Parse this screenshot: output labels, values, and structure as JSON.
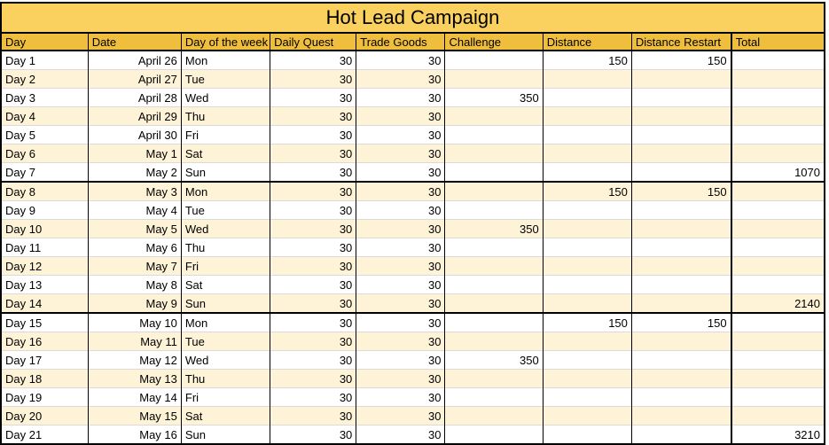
{
  "title": "Hot Lead Campaign",
  "columns": [
    {
      "key": "day",
      "label": "Day",
      "align": "left"
    },
    {
      "key": "date",
      "label": "Date",
      "align": "right"
    },
    {
      "key": "dow",
      "label": "Day of the week",
      "align": "left"
    },
    {
      "key": "daily_quest",
      "label": "Daily Quest",
      "align": "right"
    },
    {
      "key": "trade_goods",
      "label": "Trade Goods",
      "align": "right"
    },
    {
      "key": "challenge",
      "label": "Challenge",
      "align": "right"
    },
    {
      "key": "distance",
      "label": "Distance",
      "align": "right"
    },
    {
      "key": "distance_restart",
      "label": "Distance Restart",
      "align": "right"
    },
    {
      "key": "total",
      "label": "Total",
      "align": "right"
    }
  ],
  "rows": [
    {
      "day": "Day 1",
      "date": "April 26",
      "dow": "Mon",
      "daily_quest": 30,
      "trade_goods": 30,
      "challenge": "",
      "distance": 150,
      "distance_restart": 150,
      "total": ""
    },
    {
      "day": "Day 2",
      "date": "April 27",
      "dow": "Tue",
      "daily_quest": 30,
      "trade_goods": 30,
      "challenge": "",
      "distance": "",
      "distance_restart": "",
      "total": ""
    },
    {
      "day": "Day 3",
      "date": "April 28",
      "dow": "Wed",
      "daily_quest": 30,
      "trade_goods": 30,
      "challenge": 350,
      "distance": "",
      "distance_restart": "",
      "total": ""
    },
    {
      "day": "Day 4",
      "date": "April 29",
      "dow": "Thu",
      "daily_quest": 30,
      "trade_goods": 30,
      "challenge": "",
      "distance": "",
      "distance_restart": "",
      "total": ""
    },
    {
      "day": "Day 5",
      "date": "April 30",
      "dow": "Fri",
      "daily_quest": 30,
      "trade_goods": 30,
      "challenge": "",
      "distance": "",
      "distance_restart": "",
      "total": ""
    },
    {
      "day": "Day 6",
      "date": "May 1",
      "dow": "Sat",
      "daily_quest": 30,
      "trade_goods": 30,
      "challenge": "",
      "distance": "",
      "distance_restart": "",
      "total": ""
    },
    {
      "day": "Day 7",
      "date": "May 2",
      "dow": "Sun",
      "daily_quest": 30,
      "trade_goods": 30,
      "challenge": "",
      "distance": "",
      "distance_restart": "",
      "total": 1070
    },
    {
      "day": "Day 8",
      "date": "May 3",
      "dow": "Mon",
      "daily_quest": 30,
      "trade_goods": 30,
      "challenge": "",
      "distance": 150,
      "distance_restart": 150,
      "total": ""
    },
    {
      "day": "Day 9",
      "date": "May 4",
      "dow": "Tue",
      "daily_quest": 30,
      "trade_goods": 30,
      "challenge": "",
      "distance": "",
      "distance_restart": "",
      "total": ""
    },
    {
      "day": "Day 10",
      "date": "May 5",
      "dow": "Wed",
      "daily_quest": 30,
      "trade_goods": 30,
      "challenge": 350,
      "distance": "",
      "distance_restart": "",
      "total": ""
    },
    {
      "day": "Day 11",
      "date": "May 6",
      "dow": "Thu",
      "daily_quest": 30,
      "trade_goods": 30,
      "challenge": "",
      "distance": "",
      "distance_restart": "",
      "total": ""
    },
    {
      "day": "Day 12",
      "date": "May 7",
      "dow": "Fri",
      "daily_quest": 30,
      "trade_goods": 30,
      "challenge": "",
      "distance": "",
      "distance_restart": "",
      "total": ""
    },
    {
      "day": "Day 13",
      "date": "May 8",
      "dow": "Sat",
      "daily_quest": 30,
      "trade_goods": 30,
      "challenge": "",
      "distance": "",
      "distance_restart": "",
      "total": ""
    },
    {
      "day": "Day 14",
      "date": "May 9",
      "dow": "Sun",
      "daily_quest": 30,
      "trade_goods": 30,
      "challenge": "",
      "distance": "",
      "distance_restart": "",
      "total": 2140
    },
    {
      "day": "Day 15",
      "date": "May 10",
      "dow": "Mon",
      "daily_quest": 30,
      "trade_goods": 30,
      "challenge": "",
      "distance": 150,
      "distance_restart": 150,
      "total": ""
    },
    {
      "day": "Day 16",
      "date": "May 11",
      "dow": "Tue",
      "daily_quest": 30,
      "trade_goods": 30,
      "challenge": "",
      "distance": "",
      "distance_restart": "",
      "total": ""
    },
    {
      "day": "Day 17",
      "date": "May 12",
      "dow": "Wed",
      "daily_quest": 30,
      "trade_goods": 30,
      "challenge": 350,
      "distance": "",
      "distance_restart": "",
      "total": ""
    },
    {
      "day": "Day 18",
      "date": "May 13",
      "dow": "Thu",
      "daily_quest": 30,
      "trade_goods": 30,
      "challenge": "",
      "distance": "",
      "distance_restart": "",
      "total": ""
    },
    {
      "day": "Day 19",
      "date": "May 14",
      "dow": "Fri",
      "daily_quest": 30,
      "trade_goods": 30,
      "challenge": "",
      "distance": "",
      "distance_restart": "",
      "total": ""
    },
    {
      "day": "Day 20",
      "date": "May 15",
      "dow": "Sat",
      "daily_quest": 30,
      "trade_goods": 30,
      "challenge": "",
      "distance": "",
      "distance_restart": "",
      "total": ""
    },
    {
      "day": "Day 21",
      "date": "May 16",
      "dow": "Sun",
      "daily_quest": 30,
      "trade_goods": 30,
      "challenge": "",
      "distance": "",
      "distance_restart": "",
      "total": 3210
    }
  ],
  "colors": {
    "title_background": "#FAD05E",
    "header_background": "#F0BE3D",
    "shaded_row_background": "#FEF3D6",
    "grid_line": "#DADADA",
    "border": "#000000"
  }
}
